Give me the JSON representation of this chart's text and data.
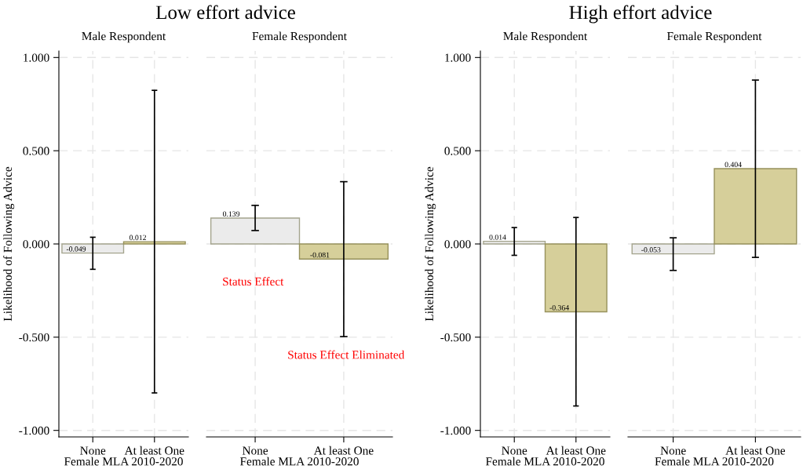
{
  "chart_data": [
    {
      "type": "bar",
      "title": "Low effort advice",
      "subtitle": "Male Respondent",
      "xlabel": "Female MLA 2010-2020",
      "ylabel": "Likelihood of Following Advice",
      "categories": [
        "None",
        "At least One"
      ],
      "values": [
        -0.049,
        0.012
      ],
      "errors": [
        [
          -0.136,
          0.036
        ],
        [
          -0.799,
          0.824
        ]
      ],
      "colors": [
        "#ebebeb",
        "#d6cf9a"
      ],
      "data_labels": true,
      "ylim": [
        -1.035,
        1.035
      ],
      "yticks": [
        {
          "value": -1,
          "label": "-1.000"
        },
        {
          "value": -0.5,
          "label": "-0.500"
        },
        {
          "value": 0,
          "label": "0.000"
        },
        {
          "value": 0.5,
          "label": "0.500"
        },
        {
          "value": 1,
          "label": "1.000"
        }
      ],
      "grid": true
    },
    {
      "type": "bar",
      "subtitle": "Female Respondent",
      "xlabel": "Female MLA 2010-2020",
      "categories": [
        "None",
        "At least One"
      ],
      "values": [
        0.139,
        -0.081
      ],
      "errors": [
        [
          0.072,
          0.207
        ],
        [
          -0.497,
          0.334
        ]
      ],
      "colors": [
        "#ebebeb",
        "#d6cf9a"
      ],
      "data_labels": true,
      "ylim": [
        -1.035,
        1.035
      ],
      "yticks": [
        -1,
        -0.5,
        0,
        0.5,
        1
      ],
      "tick_labels": "x",
      "grid": true,
      "annotations": [
        "Status Effect",
        "Status Effect Eliminated"
      ]
    },
    {
      "type": "bar",
      "title": "High effort advice",
      "subtitle": "Male Respondent",
      "xlabel": "Female MLA 2010-2020",
      "ylabel": "Likelihood of Following Advice",
      "categories": [
        "None",
        "At least One"
      ],
      "values": [
        0.014,
        -0.364
      ],
      "errors": [
        [
          -0.061,
          0.088
        ],
        [
          -0.869,
          0.142
        ]
      ],
      "colors": [
        "#ebebeb",
        "#d6cf9a"
      ],
      "data_labels": true,
      "ylim": [
        -1.035,
        1.035
      ],
      "yticks": [
        {
          "value": -1,
          "label": "-1.000"
        },
        {
          "value": -0.5,
          "label": "-0.500"
        },
        {
          "value": 0,
          "label": "0.000"
        },
        {
          "value": 0.5,
          "label": "0.500"
        },
        {
          "value": 1,
          "label": "1.000"
        }
      ],
      "grid": true
    },
    {
      "type": "bar",
      "subtitle": "Female Respondent",
      "xlabel": "Female MLA 2010-2020",
      "categories": [
        "None",
        "At least One"
      ],
      "values": [
        -0.053,
        0.404
      ],
      "errors": [
        [
          -0.142,
          0.033
        ],
        [
          -0.072,
          0.879
        ]
      ],
      "colors": [
        "#ebebeb",
        "#d6cf9a"
      ],
      "data_labels": true,
      "ylim": [
        -1.035,
        1.035
      ],
      "yticks": [
        -1,
        -0.5,
        0,
        0.5,
        1
      ],
      "tick_labels": "x",
      "grid": true
    }
  ]
}
